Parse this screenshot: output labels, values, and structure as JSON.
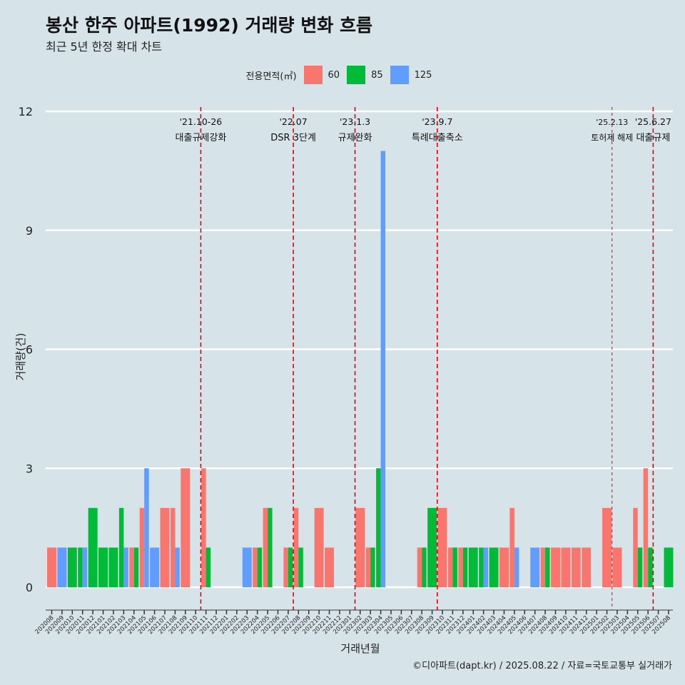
{
  "title": "봉산 한주 아파트(1992) 거래량 변화 흐름",
  "subtitle": "최근 5년 한정 확대 차트",
  "caption": "©디아파트(dapt.kr) / 2025.08.22 / 자료=국토교통부 실거래가",
  "legend": {
    "title": "전용면적(㎡)",
    "items": [
      {
        "label": "60",
        "color": "#f8766d"
      },
      {
        "label": "85",
        "color": "#00ba38"
      },
      {
        "label": "125",
        "color": "#619cff"
      }
    ]
  },
  "chart_data": {
    "type": "bar",
    "xlabel": "거래년월",
    "ylabel": "거래량(건)",
    "ylim": [
      0,
      12
    ],
    "yticks": [
      0,
      3,
      6,
      9,
      12
    ],
    "categories": [
      "202008",
      "202009",
      "202010",
      "202011",
      "202012",
      "202101",
      "202102",
      "202103",
      "202104",
      "202105",
      "202106",
      "202107",
      "202108",
      "202109",
      "202110",
      "202111",
      "202112",
      "202201",
      "202202",
      "202203",
      "202204",
      "202205",
      "202206",
      "202207",
      "202208",
      "202209",
      "202210",
      "202211",
      "202212",
      "202301",
      "202302",
      "202303",
      "202304",
      "202305",
      "202306",
      "202307",
      "202308",
      "202309",
      "202310",
      "202311",
      "202312",
      "202401",
      "202402",
      "202403",
      "202404",
      "202405",
      "202406",
      "202407",
      "202408",
      "202409",
      "202410",
      "202411",
      "202412",
      "202501",
      "202502",
      "202503",
      "202504",
      "202505",
      "202506",
      "202507",
      "202508"
    ],
    "series": [
      {
        "name": "60",
        "color": "#f8766d",
        "values": [
          1,
          0,
          0,
          0,
          0,
          0,
          0,
          0,
          1,
          2,
          0,
          2,
          2,
          3,
          0,
          3,
          0,
          0,
          0,
          0,
          1,
          2,
          0,
          1,
          2,
          0,
          2,
          1,
          0,
          0,
          2,
          1,
          0,
          0,
          0,
          0,
          1,
          0,
          2,
          1,
          1,
          0,
          0,
          0,
          1,
          2,
          0,
          0,
          1,
          1,
          1,
          1,
          1,
          0,
          2,
          1,
          0,
          2,
          3,
          0,
          0
        ]
      },
      {
        "name": "85",
        "color": "#00ba38",
        "values": [
          0,
          0,
          1,
          1,
          2,
          1,
          1,
          2,
          1,
          0,
          0,
          0,
          0,
          0,
          0,
          1,
          0,
          0,
          0,
          0,
          1,
          2,
          0,
          1,
          1,
          0,
          0,
          0,
          0,
          0,
          0,
          1,
          3,
          0,
          0,
          0,
          1,
          2,
          0,
          1,
          1,
          1,
          1,
          1,
          0,
          0,
          0,
          0,
          1,
          0,
          0,
          0,
          0,
          0,
          0,
          0,
          0,
          1,
          1,
          0,
          1
        ]
      },
      {
        "name": "125",
        "color": "#619cff",
        "values": [
          0,
          1,
          0,
          1,
          0,
          0,
          0,
          1,
          0,
          3,
          1,
          0,
          1,
          0,
          0,
          0,
          0,
          0,
          0,
          1,
          0,
          0,
          0,
          0,
          0,
          0,
          0,
          0,
          0,
          0,
          0,
          0,
          11,
          0,
          0,
          0,
          0,
          0,
          0,
          0,
          0,
          0,
          1,
          0,
          0,
          1,
          0,
          1,
          0,
          0,
          0,
          0,
          0,
          0,
          0,
          0,
          0,
          0,
          0,
          0,
          0
        ]
      }
    ],
    "annotations": [
      {
        "position": "202110",
        "line1": "'21.10-26",
        "line2": "대출규제강화",
        "style": "normal"
      },
      {
        "position": "202207",
        "line1": "'22.07",
        "line2": "DSR 3단계",
        "style": "normal"
      },
      {
        "position": "202301",
        "line1": "'23.1.3",
        "line2": "규제완화",
        "style": "normal"
      },
      {
        "position": "202309",
        "line1": "'23.9.7",
        "line2": "특례대출축소",
        "style": "normal"
      },
      {
        "position": "202502",
        "line1": "'25.2.13",
        "line2": "토허제 해제",
        "style": "thin"
      },
      {
        "position": "202506",
        "line1": "'25.6.27",
        "line2": "대출규제",
        "style": "normal"
      }
    ]
  }
}
